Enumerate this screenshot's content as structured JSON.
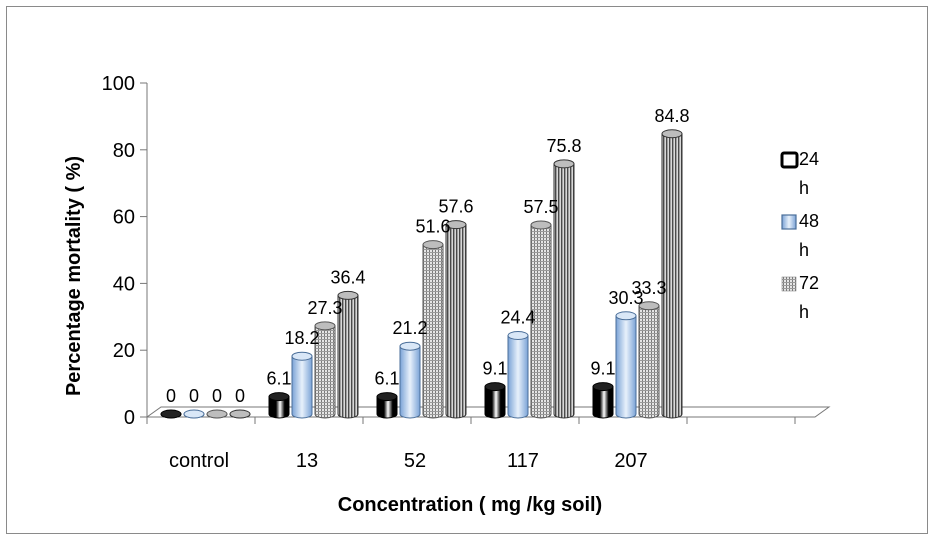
{
  "chart_data": {
    "type": "bar",
    "categories": [
      "control",
      "13",
      "52",
      "117",
      "207"
    ],
    "series": [
      {
        "name": "24 h",
        "values": [
          0,
          6.1,
          6.1,
          9.1,
          9.1
        ],
        "labels": [
          "0",
          "6.1",
          "6.1",
          "9.1",
          "9.1"
        ]
      },
      {
        "name": "48 h",
        "values": [
          0,
          18.2,
          21.2,
          24.4,
          30.3
        ],
        "labels": [
          "0",
          "18.2",
          "21.2",
          "24.4",
          "30.3"
        ]
      },
      {
        "name": "72 h",
        "values": [
          0,
          27.3,
          51.6,
          57.5,
          33.3
        ],
        "labels": [
          "0",
          "27.3",
          "51.6",
          "57.5",
          "33.3"
        ]
      },
      {
        "name": "",
        "values": [
          0,
          36.4,
          57.6,
          75.8,
          84.8
        ],
        "labels": [
          "0",
          "36.4",
          "57.6",
          "75.8",
          "84.8"
        ]
      }
    ],
    "xlabel": "Concentration ( mg /kg soil)",
    "ylabel": "Percentage mortality ( %)",
    "ylim": [
      0,
      100
    ],
    "yticks": [
      "0",
      "20",
      "40",
      "60",
      "80",
      "100"
    ],
    "legend_position": "right",
    "colors": {
      "s1": "#000000",
      "s2": "#a9c8ea",
      "s3": "#8c8c8c",
      "s4": "#6e6e6e"
    }
  }
}
